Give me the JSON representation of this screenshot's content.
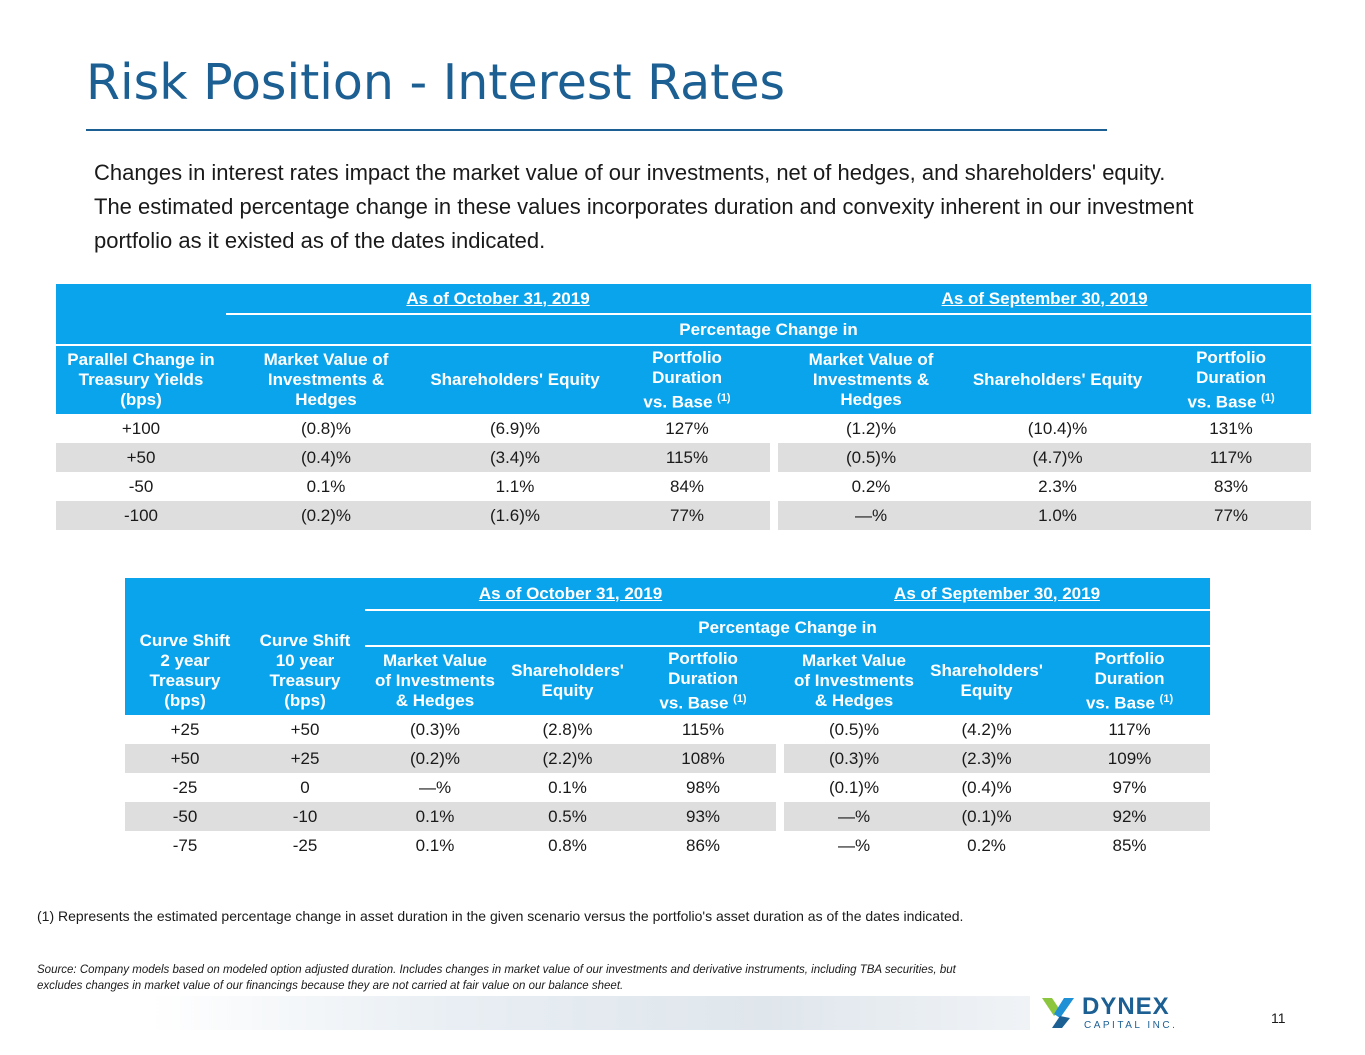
{
  "page": {
    "title": "Risk Position - Interest Rates",
    "intro": "Changes in interest rates impact the market value of our investments, net of hedges, and shareholders' equity. The estimated percentage change in these values incorporates duration and convexity inherent in our investment portfolio as it existed as of the dates indicated.",
    "footnote": "(1) Represents the estimated percentage change in asset duration in the given scenario versus the portfolio's asset duration as of the dates indicated.",
    "source": "Source: Company models based on modeled option adjusted duration. Includes changes in market value of our investments and derivative instruments, including TBA securities, but excludes changes in market value of our financings because they are not carried at fair value on our balance sheet.",
    "page_number": "11"
  },
  "logo": {
    "name": "DYNEX",
    "subtitle": "CAPITAL INC.",
    "colors": {
      "navy": "#1c5f93",
      "green": "#8cc63f",
      "blue": "#1e90d6"
    }
  },
  "colors": {
    "header_bg": "#0aa4ec",
    "shade": "#dedede",
    "title": "#1c5f93"
  },
  "table1": {
    "date1": "As of October 31, 2019",
    "date2": "As of September 30, 2019",
    "pct_change": "Percentage Change in",
    "headers": {
      "shift": [
        "Parallel Change in",
        "Treasury Yields",
        "(bps)"
      ],
      "mv": [
        "Market Value of",
        "Investments &",
        "Hedges"
      ],
      "eq": "Shareholders' Equity",
      "dur": [
        "Portfolio",
        "Duration",
        "vs. Base"
      ],
      "sup": "(1)"
    },
    "rows": [
      [
        "+100",
        "(0.8)%",
        "(6.9)%",
        "127%",
        "(1.2)%",
        "(10.4)%",
        "131%"
      ],
      [
        "+50",
        "(0.4)%",
        "(3.4)%",
        "115%",
        "(0.5)%",
        "(4.7)%",
        "117%"
      ],
      [
        "-50",
        "0.1%",
        "1.1%",
        "84%",
        "0.2%",
        "2.3%",
        "83%"
      ],
      [
        "-100",
        "(0.2)%",
        "(1.6)%",
        "77%",
        "—%",
        "1.0%",
        "77%"
      ]
    ]
  },
  "table2": {
    "date1": "As of October 31, 2019",
    "date2": "As of September 30, 2019",
    "pct_change": "Percentage Change in",
    "headers": {
      "shift2": [
        "Curve Shift",
        "2 year",
        "Treasury",
        "(bps)"
      ],
      "shift10": [
        "Curve Shift",
        "10 year",
        "Treasury",
        "(bps)"
      ],
      "mv": [
        "Market Value",
        "of Investments",
        "& Hedges"
      ],
      "eq": [
        "Shareholders'",
        "Equity"
      ],
      "dur": [
        "Portfolio",
        "Duration",
        "vs. Base"
      ],
      "sup": "(1)"
    },
    "rows": [
      [
        "+25",
        "+50",
        "(0.3)%",
        "(2.8)%",
        "115%",
        "(0.5)%",
        "(4.2)%",
        "117%"
      ],
      [
        "+50",
        "+25",
        "(0.2)%",
        "(2.2)%",
        "108%",
        "(0.3)%",
        "(2.3)%",
        "109%"
      ],
      [
        "-25",
        "0",
        "—%",
        "0.1%",
        "98%",
        "(0.1)%",
        "(0.4)%",
        "97%"
      ],
      [
        "-50",
        "-10",
        "0.1%",
        "0.5%",
        "93%",
        "—%",
        "(0.1)%",
        "92%"
      ],
      [
        "-75",
        "-25",
        "0.1%",
        "0.8%",
        "86%",
        "—%",
        "0.2%",
        "85%"
      ]
    ]
  }
}
